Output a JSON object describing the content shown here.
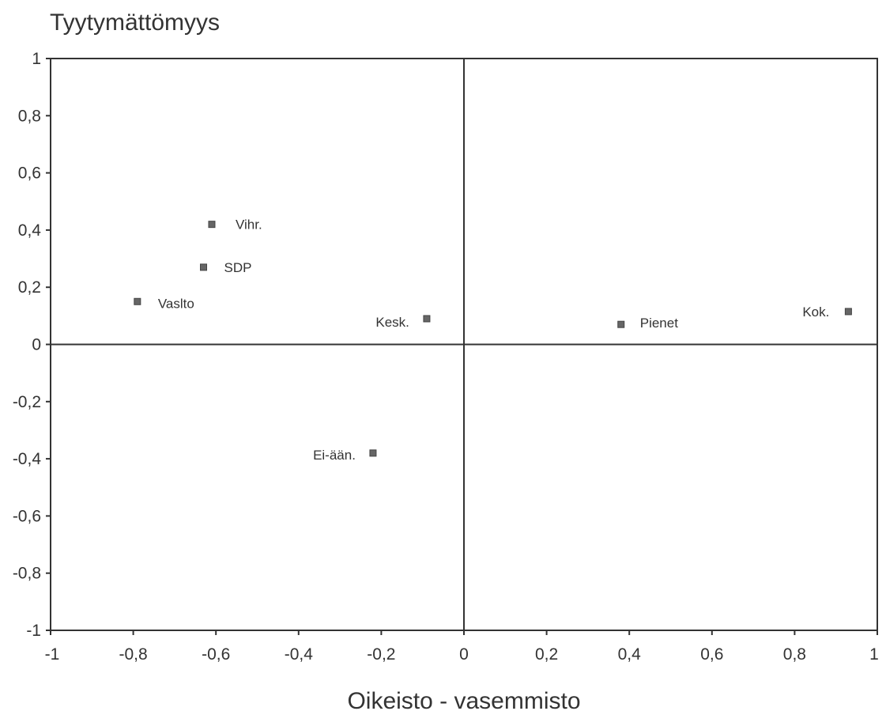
{
  "chart_data": {
    "type": "scatter",
    "title": "",
    "ylabel": "Tyytymättömyys",
    "xlabel": "Oikeisto - vasemmisto",
    "xlim": [
      -1,
      1
    ],
    "ylim": [
      -1,
      1
    ],
    "x_ticks": [
      "-1",
      "-0,8",
      "-0,6",
      "-0,4",
      "-0,2",
      "0",
      "0,2",
      "0,4",
      "0,6",
      "0,8",
      "1"
    ],
    "y_ticks": [
      "1",
      "0,8",
      "0,6",
      "0,4",
      "0,2",
      "0",
      "-0,2",
      "-0,4",
      "-0,6",
      "-0,8",
      "-1"
    ],
    "grid": false,
    "marker_color": "#666666",
    "points": [
      {
        "label": "Vihr.",
        "x": -0.61,
        "y": 0.42
      },
      {
        "label": "SDP",
        "x": -0.63,
        "y": 0.27
      },
      {
        "label": "Vaslto",
        "x": -0.79,
        "y": 0.15
      },
      {
        "label": "Kesk.",
        "x": -0.09,
        "y": 0.09
      },
      {
        "label": "Pienet",
        "x": 0.38,
        "y": 0.07
      },
      {
        "label": "Kok.",
        "x": 0.93,
        "y": 0.115
      },
      {
        "label": "Ei-ään.",
        "x": -0.22,
        "y": -0.38
      }
    ]
  }
}
